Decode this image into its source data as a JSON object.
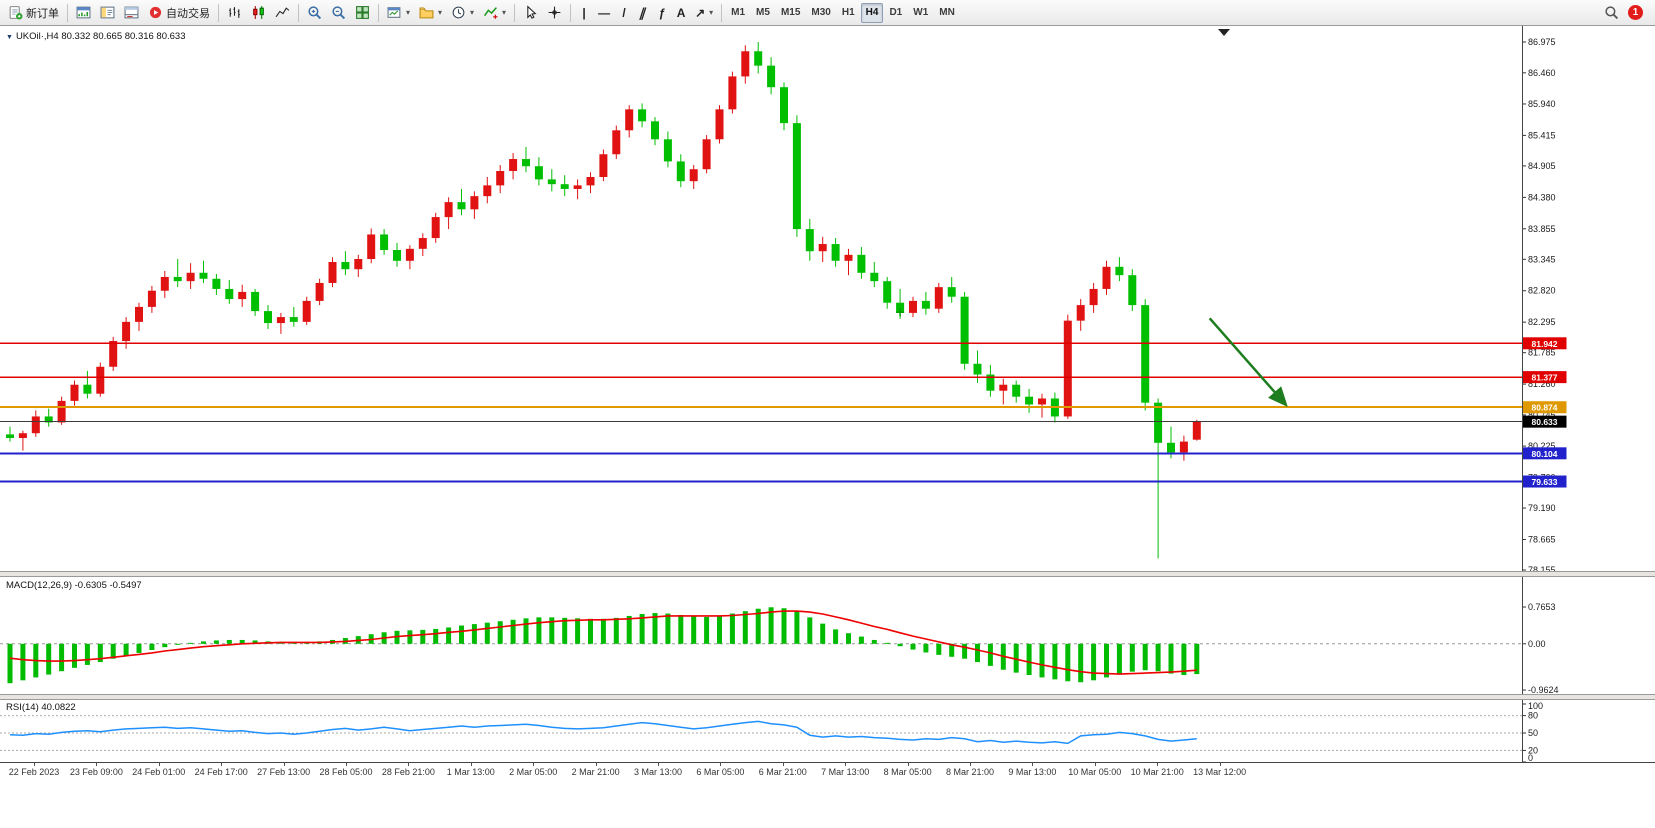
{
  "toolbar": {
    "new_order_label": "新订单",
    "auto_trading_label": "自动交易",
    "timeframes": [
      "M1",
      "M5",
      "M15",
      "M30",
      "H1",
      "H4",
      "D1",
      "W1",
      "MN"
    ],
    "active_timeframe": "H4",
    "badge_count": "1",
    "glyphs": {
      "dropdown_caret": "▾",
      "vertical_line": "|",
      "horizontal_line": "—",
      "trendline": "/",
      "channel": "∥",
      "fibonacci": "ƒ",
      "text_tool": "A",
      "arrows_tool": "↗",
      "symbol_dropdown": "▼"
    }
  },
  "chart": {
    "title": "UKOil·,H4",
    "ohlc_text": "80.332 80.665 80.316 80.633"
  },
  "chart_data": {
    "type": "candlestick",
    "symbol": "UKOil",
    "timeframe": "H4",
    "current_bar": {
      "open": 80.332,
      "high": 80.665,
      "low": 80.316,
      "close": 80.633
    },
    "up_color": "#e01212",
    "down_color": "#00bf00",
    "price_axis": {
      "min": 78.155,
      "max": 86.975,
      "ticks": [
        "86.975",
        "86.460",
        "85.940",
        "85.415",
        "84.905",
        "84.380",
        "83.855",
        "83.345",
        "82.820",
        "82.295",
        "81.785",
        "81.260",
        "80.745",
        "80.225",
        "79.700",
        "79.190",
        "78.665",
        "78.155"
      ]
    },
    "time_labels": [
      "22 Feb 2023",
      "23 Feb 09:00",
      "24 Feb 01:00",
      "24 Feb 17:00",
      "27 Feb 13:00",
      "28 Feb 05:00",
      "28 Feb 21:00",
      "1 Mar 13:00",
      "2 Mar 05:00",
      "2 Mar 21:00",
      "3 Mar 13:00",
      "6 Mar 05:00",
      "6 Mar 21:00",
      "7 Mar 13:00",
      "8 Mar 05:00",
      "8 Mar 21:00",
      "9 Mar 13:00",
      "10 Mar 05:00",
      "10 Mar 21:00",
      "13 Mar 12:00"
    ],
    "candles": [
      [
        80.42,
        80.55,
        80.3,
        80.36
      ],
      [
        80.36,
        80.48,
        80.15,
        80.44
      ],
      [
        80.44,
        80.82,
        80.38,
        80.72
      ],
      [
        80.72,
        80.85,
        80.55,
        80.62
      ],
      [
        80.62,
        81.05,
        80.58,
        80.98
      ],
      [
        80.98,
        81.32,
        80.9,
        81.25
      ],
      [
        81.25,
        81.48,
        81.02,
        81.1
      ],
      [
        81.1,
        81.62,
        81.05,
        81.55
      ],
      [
        81.55,
        82.05,
        81.48,
        81.98
      ],
      [
        81.98,
        82.38,
        81.85,
        82.3
      ],
      [
        82.3,
        82.62,
        82.15,
        82.55
      ],
      [
        82.55,
        82.9,
        82.45,
        82.82
      ],
      [
        82.82,
        83.15,
        82.7,
        83.05
      ],
      [
        83.05,
        83.35,
        82.88,
        82.98
      ],
      [
        82.98,
        83.28,
        82.85,
        83.12
      ],
      [
        83.12,
        83.32,
        82.95,
        83.02
      ],
      [
        83.02,
        83.1,
        82.75,
        82.85
      ],
      [
        82.85,
        83.0,
        82.6,
        82.68
      ],
      [
        82.68,
        82.92,
        82.55,
        82.8
      ],
      [
        82.8,
        82.85,
        82.4,
        82.48
      ],
      [
        82.48,
        82.58,
        82.18,
        82.28
      ],
      [
        82.28,
        82.45,
        82.1,
        82.38
      ],
      [
        82.38,
        82.55,
        82.22,
        82.3
      ],
      [
        82.3,
        82.72,
        82.25,
        82.65
      ],
      [
        82.65,
        83.02,
        82.58,
        82.95
      ],
      [
        82.95,
        83.38,
        82.88,
        83.3
      ],
      [
        83.3,
        83.48,
        83.08,
        83.18
      ],
      [
        83.18,
        83.42,
        83.05,
        83.35
      ],
      [
        83.35,
        83.86,
        83.28,
        83.76
      ],
      [
        83.76,
        83.85,
        83.42,
        83.5
      ],
      [
        83.5,
        83.62,
        83.22,
        83.32
      ],
      [
        83.32,
        83.58,
        83.18,
        83.52
      ],
      [
        83.52,
        83.78,
        83.4,
        83.7
      ],
      [
        83.7,
        84.12,
        83.62,
        84.05
      ],
      [
        84.05,
        84.38,
        83.85,
        84.3
      ],
      [
        84.3,
        84.52,
        84.08,
        84.18
      ],
      [
        84.18,
        84.48,
        84.02,
        84.4
      ],
      [
        84.4,
        84.72,
        84.28,
        84.58
      ],
      [
        84.58,
        84.92,
        84.45,
        84.82
      ],
      [
        84.82,
        85.12,
        84.68,
        85.02
      ],
      [
        85.02,
        85.22,
        84.8,
        84.9
      ],
      [
        84.9,
        85.05,
        84.58,
        84.68
      ],
      [
        84.68,
        84.85,
        84.48,
        84.6
      ],
      [
        84.6,
        84.75,
        84.4,
        84.52
      ],
      [
        84.52,
        84.68,
        84.35,
        84.58
      ],
      [
        84.58,
        84.8,
        84.45,
        84.72
      ],
      [
        84.72,
        85.18,
        84.65,
        85.1
      ],
      [
        85.1,
        85.58,
        85.02,
        85.5
      ],
      [
        85.5,
        85.92,
        85.38,
        85.85
      ],
      [
        85.85,
        85.95,
        85.55,
        85.65
      ],
      [
        85.65,
        85.72,
        85.25,
        85.35
      ],
      [
        85.35,
        85.48,
        84.88,
        84.98
      ],
      [
        84.98,
        85.1,
        84.55,
        84.65
      ],
      [
        84.65,
        84.92,
        84.52,
        84.85
      ],
      [
        84.85,
        85.42,
        84.78,
        85.35
      ],
      [
        85.35,
        85.92,
        85.28,
        85.85
      ],
      [
        85.85,
        86.48,
        85.78,
        86.4
      ],
      [
        86.4,
        86.92,
        86.28,
        86.82
      ],
      [
        86.82,
        86.975,
        86.45,
        86.58
      ],
      [
        86.58,
        86.72,
        86.1,
        86.22
      ],
      [
        86.22,
        86.3,
        85.5,
        85.62
      ],
      [
        85.62,
        85.75,
        83.72,
        83.85
      ],
      [
        83.85,
        84.02,
        83.32,
        83.48
      ],
      [
        83.48,
        83.72,
        83.3,
        83.6
      ],
      [
        83.6,
        83.7,
        83.22,
        83.32
      ],
      [
        83.32,
        83.52,
        83.08,
        83.42
      ],
      [
        83.42,
        83.55,
        83.02,
        83.12
      ],
      [
        83.12,
        83.3,
        82.88,
        82.98
      ],
      [
        82.98,
        83.05,
        82.52,
        82.62
      ],
      [
        82.62,
        82.85,
        82.35,
        82.45
      ],
      [
        82.45,
        82.72,
        82.38,
        82.65
      ],
      [
        82.65,
        82.8,
        82.42,
        82.52
      ],
      [
        82.52,
        82.95,
        82.45,
        82.88
      ],
      [
        82.88,
        83.05,
        82.62,
        82.72
      ],
      [
        82.72,
        82.8,
        81.5,
        81.6
      ],
      [
        81.6,
        81.82,
        81.28,
        81.42
      ],
      [
        81.42,
        81.58,
        81.05,
        81.15
      ],
      [
        81.15,
        81.35,
        80.92,
        81.25
      ],
      [
        81.25,
        81.32,
        80.95,
        81.05
      ],
      [
        81.05,
        81.18,
        80.78,
        80.92
      ],
      [
        80.92,
        81.1,
        80.7,
        81.02
      ],
      [
        81.02,
        81.12,
        80.62,
        80.72
      ],
      [
        80.72,
        82.42,
        80.68,
        82.32
      ],
      [
        82.32,
        82.68,
        82.15,
        82.58
      ],
      [
        82.58,
        82.95,
        82.45,
        82.85
      ],
      [
        82.85,
        83.32,
        82.75,
        83.22
      ],
      [
        83.22,
        83.38,
        82.98,
        83.08
      ],
      [
        83.08,
        83.18,
        82.48,
        82.58
      ],
      [
        82.58,
        82.68,
        80.82,
        80.95
      ],
      [
        80.95,
        81.02,
        78.35,
        80.28
      ],
      [
        80.28,
        80.55,
        80.02,
        80.12
      ],
      [
        80.12,
        80.4,
        79.98,
        80.3
      ],
      [
        80.332,
        80.665,
        80.316,
        80.633
      ]
    ],
    "horizontal_levels": [
      {
        "price": "81.942",
        "color": "#e00000",
        "width": 1.5,
        "label_bg": "#e00000"
      },
      {
        "price": "81.377",
        "color": "#e00000",
        "width": 1.5,
        "label_bg": "#e00000"
      },
      {
        "price": "80.874",
        "color": "#e09800",
        "width": 2,
        "label_bg": "#e09800"
      },
      {
        "price": "80.633",
        "color": "#3c3c3c",
        "width": 1,
        "label_bg": "#000000",
        "role": "bid"
      },
      {
        "price": "80.104",
        "color": "#2222cc",
        "width": 2,
        "label_bg": "#2222cc"
      },
      {
        "price": "79.633",
        "color": "#2222cc",
        "width": 2,
        "label_bg": "#2222cc"
      }
    ],
    "arrow_annotation": {
      "from_bar": 93,
      "from_price": 82.36,
      "to_bar": 98.8,
      "to_price": 80.94,
      "color": "#1e7d1e"
    },
    "plus_marker": {
      "bar": 69,
      "price": 82.46,
      "color": "#00a000"
    },
    "macd": {
      "label": "MACD(12,26,9)",
      "values_text": "-0.6305 -0.5497",
      "main_value": -0.6305,
      "signal_value": -0.5497,
      "axis_ticks": [
        "0.7653",
        "0.00",
        "-0.9624"
      ],
      "histogram_color": "#00bb00",
      "signal_color": "#ee0000",
      "histogram": [
        -0.82,
        -0.76,
        -0.7,
        -0.64,
        -0.57,
        -0.5,
        -0.44,
        -0.38,
        -0.31,
        -0.25,
        -0.19,
        -0.13,
        -0.07,
        -0.02,
        0.02,
        0.05,
        0.07,
        0.08,
        0.08,
        0.07,
        0.05,
        0.04,
        0.03,
        0.03,
        0.05,
        0.08,
        0.12,
        0.16,
        0.2,
        0.24,
        0.27,
        0.28,
        0.29,
        0.31,
        0.34,
        0.38,
        0.41,
        0.44,
        0.47,
        0.5,
        0.53,
        0.55,
        0.55,
        0.54,
        0.53,
        0.52,
        0.52,
        0.54,
        0.58,
        0.62,
        0.64,
        0.63,
        0.6,
        0.57,
        0.56,
        0.59,
        0.63,
        0.68,
        0.73,
        0.76,
        0.74,
        0.68,
        0.55,
        0.42,
        0.3,
        0.22,
        0.15,
        0.08,
        0.02,
        -0.05,
        -0.12,
        -0.18,
        -0.23,
        -0.27,
        -0.31,
        -0.38,
        -0.46,
        -0.54,
        -0.6,
        -0.65,
        -0.7,
        -0.74,
        -0.78,
        -0.8,
        -0.76,
        -0.7,
        -0.64,
        -0.58,
        -0.55,
        -0.57,
        -0.62,
        -0.65,
        -0.6305
      ],
      "signal": [
        -0.3,
        -0.33,
        -0.35,
        -0.36,
        -0.36,
        -0.35,
        -0.33,
        -0.31,
        -0.28,
        -0.25,
        -0.22,
        -0.19,
        -0.15,
        -0.12,
        -0.09,
        -0.06,
        -0.04,
        -0.02,
        0.0,
        0.01,
        0.02,
        0.03,
        0.03,
        0.03,
        0.03,
        0.04,
        0.05,
        0.07,
        0.09,
        0.12,
        0.15,
        0.17,
        0.19,
        0.21,
        0.24,
        0.26,
        0.29,
        0.32,
        0.35,
        0.38,
        0.41,
        0.44,
        0.46,
        0.48,
        0.49,
        0.5,
        0.5,
        0.51,
        0.52,
        0.54,
        0.56,
        0.58,
        0.58,
        0.58,
        0.58,
        0.58,
        0.59,
        0.61,
        0.63,
        0.66,
        0.68,
        0.68,
        0.66,
        0.62,
        0.56,
        0.5,
        0.43,
        0.36,
        0.3,
        0.23,
        0.16,
        0.1,
        0.04,
        -0.02,
        -0.07,
        -0.13,
        -0.19,
        -0.26,
        -0.32,
        -0.38,
        -0.44,
        -0.49,
        -0.54,
        -0.58,
        -0.61,
        -0.62,
        -0.63,
        -0.62,
        -0.61,
        -0.6,
        -0.59,
        -0.57,
        -0.5497
      ]
    },
    "rsi": {
      "label": "RSI(14)",
      "value_text": "40.0822",
      "value": 40.0822,
      "color": "#1e90ff",
      "levels": [
        80,
        50,
        20
      ],
      "axis_ticks": [
        "100",
        "80",
        "50",
        "20",
        "0"
      ],
      "values": [
        47,
        46,
        49,
        48,
        51,
        53,
        54,
        52,
        55,
        57,
        58,
        59,
        60,
        58,
        59,
        57,
        55,
        53,
        54,
        51,
        49,
        50,
        48,
        50,
        53,
        56,
        58,
        55,
        57,
        60,
        57,
        54,
        56,
        58,
        60,
        62,
        60,
        62,
        63,
        64,
        65,
        63,
        60,
        58,
        57,
        58,
        59,
        62,
        65,
        68,
        66,
        63,
        60,
        57,
        59,
        62,
        65,
        68,
        70,
        66,
        64,
        60,
        46,
        43,
        45,
        43,
        44,
        42,
        41,
        39,
        38,
        40,
        39,
        42,
        40,
        35,
        37,
        34,
        36,
        34,
        33,
        35,
        32,
        45,
        47,
        48,
        51,
        49,
        45,
        39,
        36,
        38,
        40.08
      ]
    }
  }
}
